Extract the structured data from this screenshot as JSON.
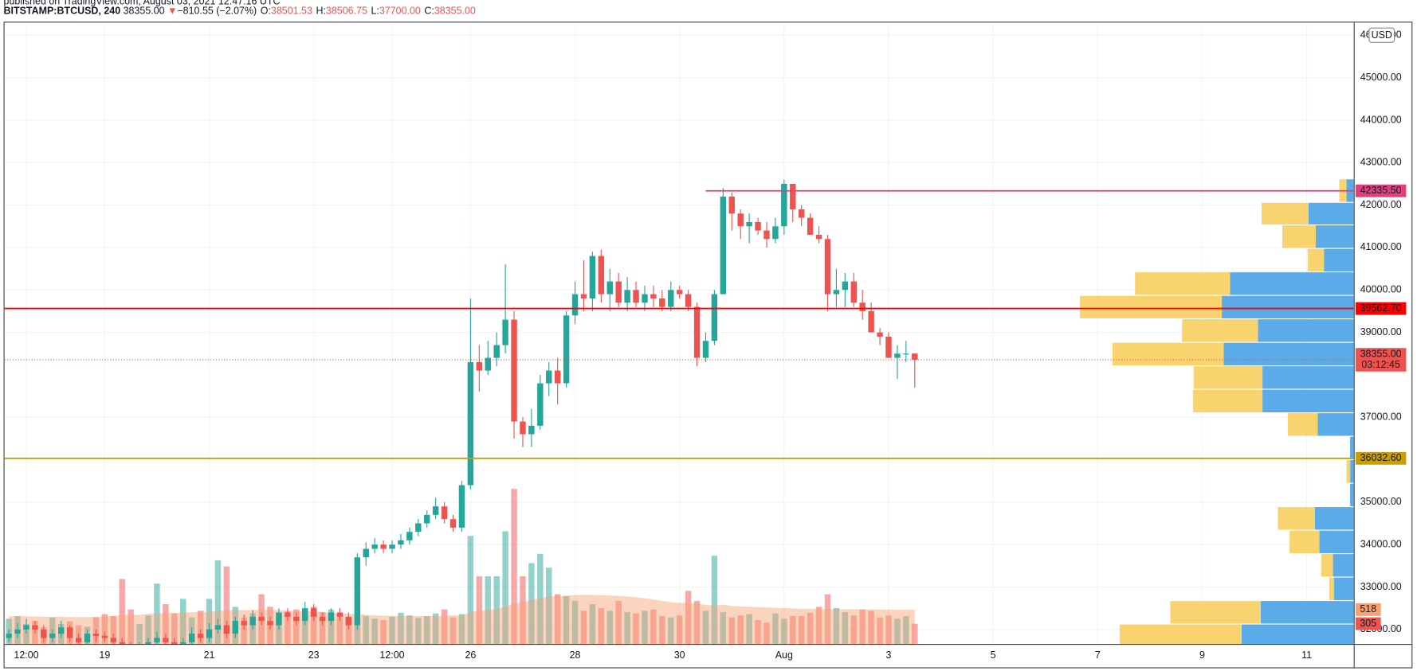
{
  "header": {
    "published": "published on TradingView.com, August 03, 2021 12:47:16 UTC",
    "symbol": "BITSTAMP:BTCUSD, 240",
    "last": "38355.00",
    "arrow": "▼",
    "change": "−810.55 (−2.07%)",
    "ohlc": [
      {
        "label": "O:",
        "value": "38501.53"
      },
      {
        "label": "H:",
        "value": "38506.75"
      },
      {
        "label": "L:",
        "value": "37700.00"
      },
      {
        "label": "C:",
        "value": "38355.00"
      }
    ]
  },
  "chart_data": {
    "type": "candlestick",
    "currency": "USD",
    "up_color": "#26a69a",
    "down_color": "#ef5350",
    "grid": true,
    "open": [
      31800,
      31900,
      32000,
      32100,
      32000,
      31800,
      31900,
      32050,
      31800,
      31700,
      31900,
      31850,
      31800,
      31700,
      31600,
      31500,
      31600,
      31700,
      31800,
      31700,
      31600,
      31700,
      31900,
      31800,
      32000,
      32100,
      31900,
      32200,
      32100,
      32300,
      32200,
      32100,
      32400,
      32300,
      32200,
      32500,
      32300,
      32200,
      32400,
      32300,
      32100,
      33700,
      33900,
      34000,
      33900,
      34000,
      34100,
      34300,
      34500,
      34700,
      34900,
      34600,
      34400,
      35400,
      38300,
      38100,
      38400,
      38700,
      39300,
      36900,
      36600,
      36800,
      37800,
      38100,
      37800,
      39400,
      39900,
      39800,
      40800,
      39900,
      40200,
      39700,
      40000,
      39700,
      39900,
      39800,
      39600,
      40000,
      39900,
      39600,
      38400,
      38800,
      39900,
      42200,
      41800,
      41500,
      41600,
      41400,
      41200,
      41500,
      42500,
      41900,
      41700,
      41300,
      41200,
      39900,
      40000,
      40200,
      39700,
      39500,
      39000,
      38900,
      38400,
      38500,
      38501.53
    ],
    "high": [
      32000,
      32150,
      32250,
      32200,
      32100,
      32000,
      32200,
      32100,
      31900,
      32000,
      32000,
      31950,
      31900,
      31800,
      31700,
      31700,
      31800,
      31950,
      31900,
      31800,
      31800,
      32050,
      32000,
      32150,
      32250,
      32200,
      32300,
      32350,
      32450,
      32400,
      32300,
      32500,
      32500,
      32400,
      32650,
      32600,
      32400,
      32500,
      32500,
      32400,
      33800,
      34050,
      34150,
      34100,
      34100,
      34250,
      34400,
      34600,
      34800,
      35100,
      35000,
      34700,
      35500,
      39800,
      38700,
      38800,
      39000,
      40600,
      39500,
      37000,
      37200,
      38000,
      38300,
      38400,
      39500,
      40200,
      40700,
      40900,
      40950,
      40500,
      40400,
      40300,
      40200,
      40100,
      40100,
      40000,
      40200,
      40100,
      40000,
      39700,
      39000,
      40000,
      42400,
      42300,
      41900,
      41800,
      41700,
      41600,
      41700,
      42600,
      42500,
      42000,
      41800,
      41500,
      41300,
      40500,
      40400,
      40400,
      40000,
      39700,
      39100,
      39000,
      38700,
      38800,
      38506.75
    ],
    "low": [
      31700,
      31800,
      31900,
      31900,
      31700,
      31700,
      31800,
      31700,
      31600,
      31600,
      31700,
      31700,
      31600,
      31500,
      31400,
      31400,
      31500,
      31600,
      31600,
      31500,
      31500,
      31600,
      31700,
      31700,
      31900,
      31800,
      31800,
      32000,
      32000,
      32100,
      32000,
      32000,
      32200,
      32100,
      32100,
      32200,
      32100,
      32100,
      32200,
      32000,
      32000,
      33500,
      33800,
      33800,
      33800,
      33900,
      34000,
      34200,
      34400,
      34600,
      34500,
      34300,
      34300,
      35300,
      37600,
      38000,
      38200,
      38500,
      36500,
      36300,
      36300,
      36700,
      37500,
      37300,
      37700,
      39200,
      39500,
      39500,
      39700,
      39500,
      39600,
      39500,
      39600,
      39500,
      39600,
      39500,
      39500,
      39800,
      39500,
      38200,
      38300,
      38700,
      39900,
      41400,
      41200,
      41100,
      41300,
      41000,
      41100,
      41300,
      41600,
      41500,
      41300,
      41100,
      39500,
      39600,
      39600,
      39600,
      39300,
      39100,
      38700,
      38400,
      37900,
      38300,
      37700
    ],
    "close": [
      31900,
      32000,
      32100,
      32000,
      31800,
      31900,
      32050,
      31800,
      31700,
      31900,
      31850,
      31800,
      31700,
      31600,
      31500,
      31600,
      31700,
      31800,
      31700,
      31600,
      31700,
      31900,
      31800,
      32000,
      32100,
      31900,
      32200,
      32100,
      32300,
      32200,
      32100,
      32400,
      32300,
      32200,
      32500,
      32300,
      32200,
      32400,
      32300,
      32100,
      33700,
      33900,
      34000,
      33900,
      34000,
      34100,
      34300,
      34500,
      34700,
      34900,
      34600,
      34400,
      35400,
      38300,
      38100,
      38400,
      38700,
      39300,
      36900,
      36600,
      36800,
      37800,
      38100,
      37800,
      39400,
      39900,
      39800,
      40800,
      39900,
      40200,
      39700,
      40000,
      39700,
      39900,
      39800,
      39600,
      40000,
      39900,
      39600,
      38400,
      38800,
      39900,
      42200,
      41800,
      41500,
      41600,
      41400,
      41200,
      41500,
      42500,
      41900,
      41700,
      41300,
      41200,
      39900,
      40000,
      40200,
      39700,
      39500,
      39000,
      38900,
      38400,
      38500,
      38501.53,
      38355
    ],
    "volume": [
      380,
      420,
      300,
      350,
      250,
      400,
      300,
      340,
      280,
      260,
      400,
      450,
      420,
      980,
      520,
      300,
      430,
      910,
      600,
      460,
      680,
      400,
      500,
      680,
      1260,
      1170,
      560,
      400,
      460,
      750,
      560,
      420,
      490,
      520,
      350,
      560,
      480,
      520,
      400,
      330,
      400,
      420,
      380,
      360,
      410,
      470,
      430,
      390,
      420,
      460,
      520,
      400,
      450,
      1630,
      1020,
      1020,
      1020,
      1700,
      2340,
      1020,
      1220,
      1360,
      1150,
      750,
      720,
      650,
      500,
      600,
      540,
      500,
      650,
      480,
      460,
      500,
      520,
      420,
      400,
      430,
      800,
      650,
      500,
      1330,
      480,
      400,
      430,
      450,
      360,
      320,
      460,
      380,
      420,
      420,
      470,
      560,
      750,
      540,
      480,
      430,
      520,
      500,
      400,
      430,
      380,
      420,
      305
    ],
    "volume_ma": [
      420,
      420,
      415,
      415,
      410,
      410,
      410,
      405,
      405,
      405,
      410,
      415,
      420,
      440,
      440,
      440,
      455,
      460,
      465,
      470,
      475,
      475,
      480,
      485,
      500,
      510,
      510,
      510,
      515,
      515,
      515,
      510,
      505,
      500,
      495,
      490,
      480,
      470,
      460,
      455,
      450,
      440,
      430,
      425,
      425,
      420,
      420,
      420,
      420,
      420,
      425,
      430,
      430,
      480,
      500,
      515,
      530,
      565,
      610,
      630,
      660,
      690,
      715,
      720,
      730,
      735,
      740,
      740,
      735,
      730,
      725,
      715,
      705,
      690,
      670,
      650,
      630,
      620,
      615,
      605,
      590,
      580,
      590,
      575,
      565,
      560,
      555,
      550,
      545,
      540,
      535,
      530,
      530,
      528,
      525,
      525,
      523,
      522,
      520,
      520,
      520,
      519,
      518,
      518,
      518
    ],
    "volume_ylim": [
      0,
      3680
    ],
    "volume_labels": [
      {
        "value": 518,
        "label": "518",
        "color": "#f7a072"
      },
      {
        "value": 305,
        "label": "305",
        "color": "#ef5350"
      }
    ],
    "xlim": [
      -0.5,
      154.4
    ],
    "xticks": [
      {
        "value": 2,
        "label": "12:00"
      },
      {
        "value": 11,
        "label": "19"
      },
      {
        "value": 23,
        "label": "21"
      },
      {
        "value": 35,
        "label": "23"
      },
      {
        "value": 44,
        "label": "12:00"
      },
      {
        "value": 53,
        "label": "26"
      },
      {
        "value": 65,
        "label": "28"
      },
      {
        "value": 77,
        "label": "30"
      },
      {
        "value": 89,
        "label": "Aug"
      },
      {
        "value": 101,
        "label": "3"
      },
      {
        "value": 113,
        "label": "5"
      },
      {
        "value": 125,
        "label": "7"
      },
      {
        "value": 137,
        "label": "9"
      },
      {
        "value": 149,
        "label": "11"
      }
    ],
    "ylim": [
      31660,
      46300
    ],
    "yticks": [
      {
        "value": 32000,
        "label": "32000.00"
      },
      {
        "value": 33000,
        "label": "33000.00"
      },
      {
        "value": 34000,
        "label": "34000.00"
      },
      {
        "value": 35000,
        "label": "35000.00"
      },
      {
        "value": 37000,
        "label": "37000.00"
      },
      {
        "value": 39000,
        "label": "39000.00"
      },
      {
        "value": 40000,
        "label": "40000.00"
      },
      {
        "value": 41000,
        "label": "41000.00"
      },
      {
        "value": 42000,
        "label": "42000.00"
      },
      {
        "value": 43000,
        "label": "43000.00"
      },
      {
        "value": 44000,
        "label": "44000.00"
      },
      {
        "value": 45000,
        "label": "45000.00"
      },
      {
        "value": 46000,
        "label": "46000.00"
      }
    ],
    "hlines": [
      {
        "value": 42335.5,
        "label": "42335.50",
        "color": "#e0407b",
        "from": 80
      },
      {
        "value": 39562.7,
        "label": "39562.70",
        "color": "#ff0000",
        "from": -0.5
      },
      {
        "value": 36032.6,
        "label": "36032.60",
        "color": "#c9a000",
        "from": -0.5
      }
    ],
    "last_price": {
      "value": 38355,
      "label": "38355.00",
      "countdown": "03:12:45",
      "color": "#ef5350"
    },
    "profile": {
      "up_color": "#5aabe8",
      "down_color": "#f9d36e",
      "xlim": [
        0,
        310
      ],
      "bins": [
        31574,
        32128,
        32681,
        33234,
        33787,
        34340,
        34894,
        35447,
        36000,
        36553,
        37106,
        37660,
        38213,
        38766,
        39319,
        39872,
        40426,
        40979,
        41532,
        42064,
        42617
      ],
      "up": [
        124,
        103,
        22,
        23,
        38,
        43,
        4,
        4,
        4,
        40,
        101,
        101,
        144,
        106,
        146,
        137,
        33,
        42,
        50,
        8
      ],
      "down": [
        135,
        100,
        5,
        13,
        33,
        41,
        0,
        4,
        0,
        33,
        77,
        76,
        123,
        84,
        157,
        105,
        18,
        37,
        52,
        8
      ]
    }
  }
}
